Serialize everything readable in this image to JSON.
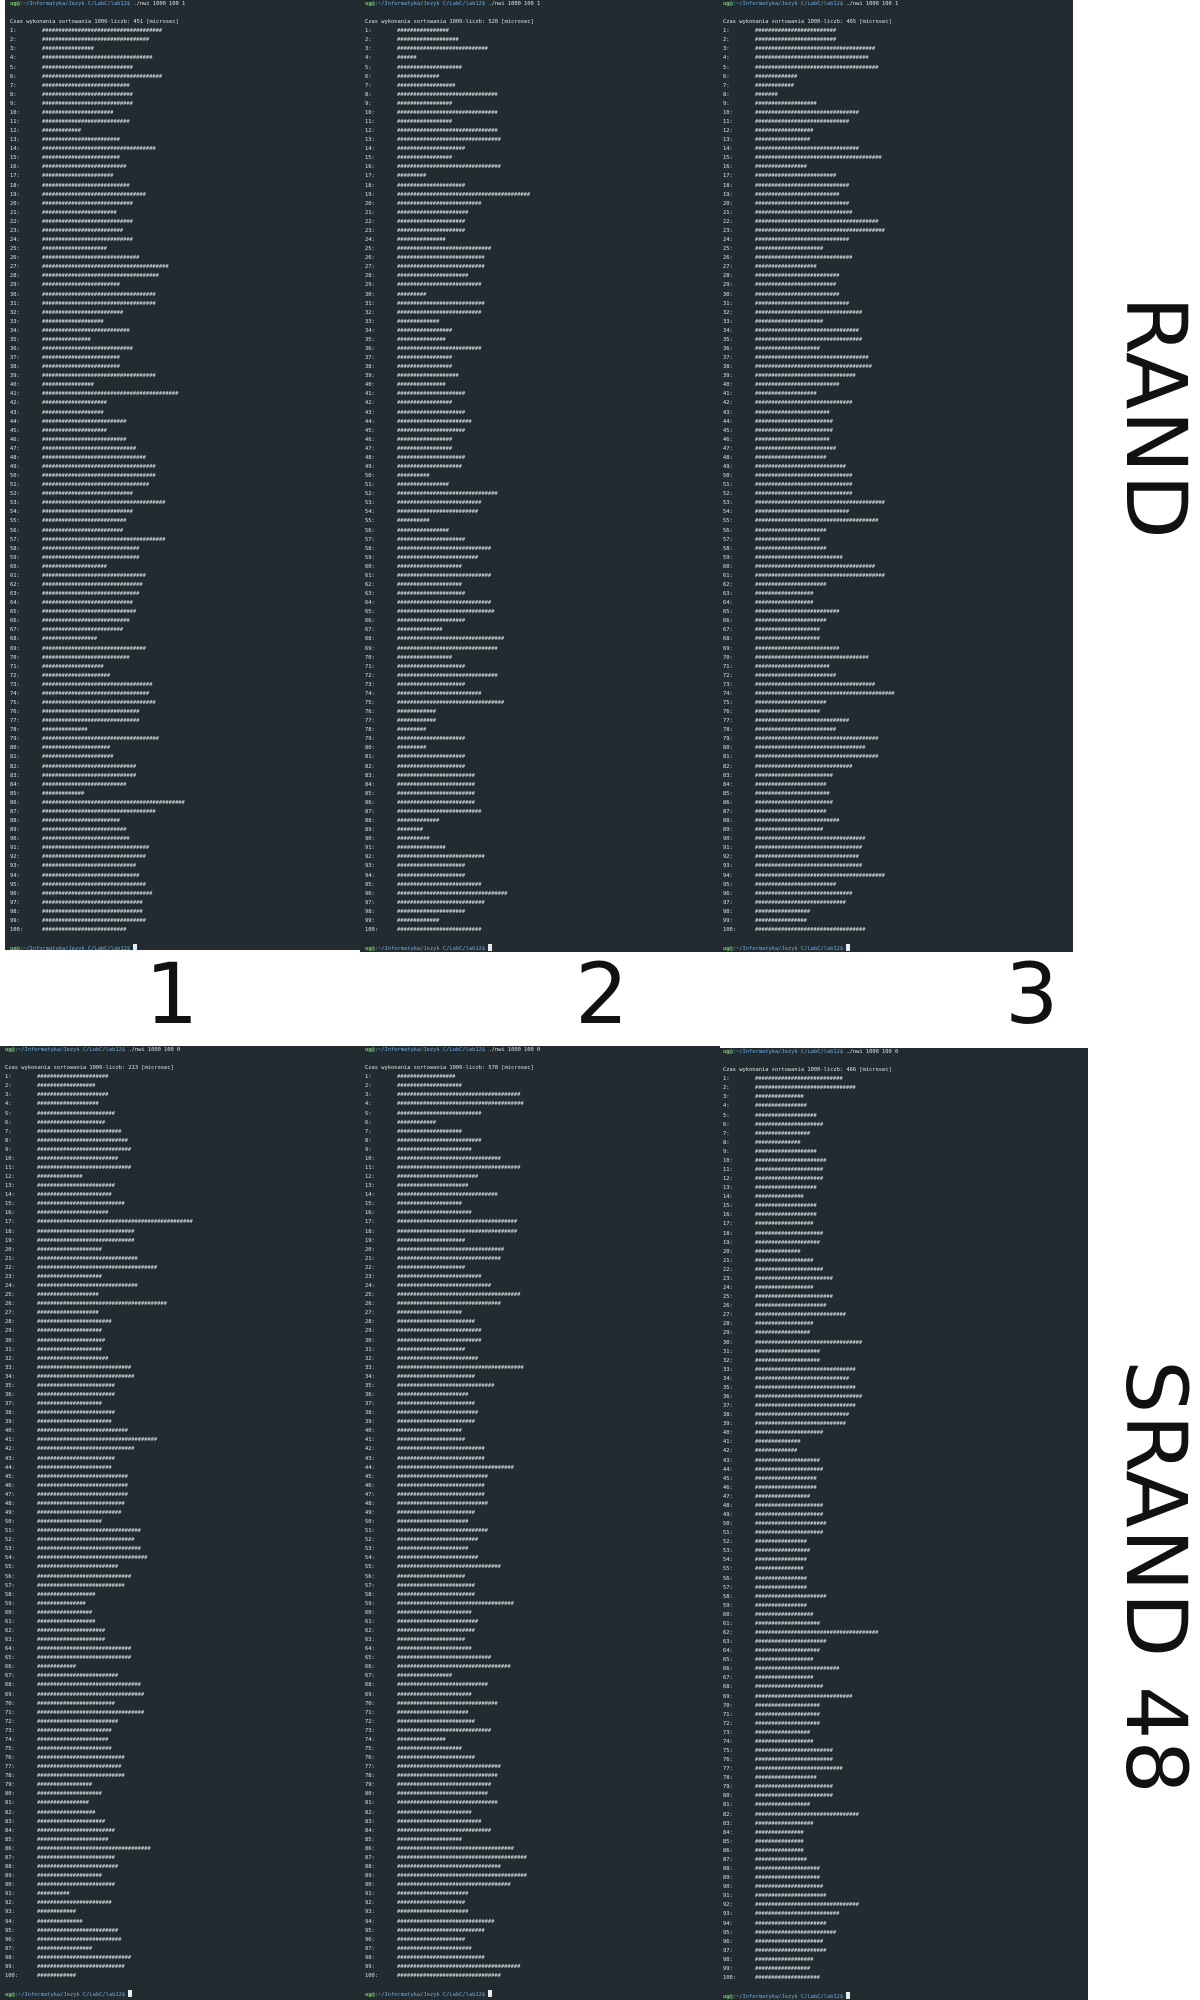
{
  "labels": {
    "row_rand": "RAND",
    "row_srand": "SRAND 48",
    "columns": [
      "1",
      "2",
      "3"
    ]
  },
  "colors": {
    "terminal_bg": "#222b30",
    "terminal_fg": "#dde3e6",
    "prompt_user": "#7cc36e",
    "prompt_path": "#6ea8e0"
  },
  "prompt": {
    "user": "ug@",
    "path": ":~/Informatyka/Jezyk C/LabC/lab12$"
  },
  "terminals": [
    {
      "id": "rand-1",
      "command": " ./nwi 1000 100 1",
      "time_line": "Czas wykonania sortowania 1000-liczb: 451 [microsec]",
      "bars": [
        37,
        33,
        16,
        34,
        28,
        37,
        27,
        28,
        28,
        22,
        27,
        12,
        24,
        35,
        24,
        26,
        22,
        27,
        32,
        28,
        23,
        28,
        25,
        28,
        20,
        30,
        39,
        36,
        24,
        35,
        35,
        25,
        19,
        27,
        15,
        28,
        24,
        24,
        35,
        16,
        42,
        20,
        19,
        26,
        20,
        26,
        29,
        32,
        35,
        35,
        33,
        28,
        38,
        28,
        26,
        25,
        38,
        30,
        30,
        20,
        32,
        31,
        30,
        28,
        29,
        27,
        25,
        17,
        32,
        27,
        19,
        21,
        34,
        33,
        35,
        30,
        30,
        14,
        36,
        21,
        22,
        29,
        29,
        26,
        13,
        44,
        35,
        24,
        26,
        27,
        33,
        32,
        29,
        30,
        32,
        34,
        31,
        31,
        32,
        26
      ]
    },
    {
      "id": "rand-2",
      "command": " ./nwi 1000 100 1",
      "time_line": "Czas wykonania sortowania 1000-liczb: 520 [microsec]",
      "bars": [
        16,
        19,
        28,
        6,
        20,
        13,
        18,
        31,
        17,
        31,
        17,
        31,
        32,
        21,
        17,
        32,
        9,
        21,
        41,
        26,
        22,
        21,
        21,
        15,
        29,
        27,
        27,
        22,
        26,
        9,
        27,
        26,
        13,
        17,
        15,
        26,
        17,
        17,
        19,
        15,
        21,
        17,
        21,
        23,
        21,
        17,
        17,
        21,
        20,
        10,
        16,
        31,
        26,
        25,
        10,
        16,
        21,
        29,
        25,
        20,
        29,
        20,
        21,
        29,
        30,
        21,
        14,
        33,
        31,
        17,
        21,
        31,
        21,
        26,
        33,
        12,
        12,
        9,
        21,
        9,
        21,
        21,
        24,
        24,
        24,
        24,
        26,
        13,
        8,
        10,
        15,
        27,
        21,
        21,
        26,
        34,
        27,
        21,
        13,
        26
      ]
    },
    {
      "id": "rand-3",
      "command": " ./nwi 1000 100 1",
      "time_line": "Czas wykonania sortowania 1000-liczb: 465 [microsec]",
      "bars": [
        25,
        25,
        37,
        35,
        38,
        13,
        12,
        7,
        19,
        32,
        29,
        18,
        17,
        32,
        39,
        16,
        25,
        29,
        26,
        29,
        30,
        38,
        40,
        29,
        21,
        30,
        19,
        26,
        25,
        26,
        29,
        33,
        21,
        32,
        33,
        20,
        35,
        36,
        31,
        26,
        19,
        30,
        23,
        24,
        24,
        23,
        25,
        22,
        28,
        30,
        30,
        30,
        40,
        29,
        38,
        22,
        20,
        22,
        27,
        37,
        40,
        22,
        18,
        18,
        26,
        22,
        20,
        20,
        26,
        35,
        23,
        25,
        37,
        43,
        22,
        20,
        29,
        25,
        38,
        34,
        38,
        30,
        24,
        22,
        23,
        24,
        22,
        26,
        21,
        34,
        33,
        32,
        33,
        40,
        25,
        30,
        28,
        17,
        16,
        34
      ]
    },
    {
      "id": "srand-1",
      "command": " ./nwi 1000 100 0",
      "time_line": "Czas wykonania sortowania 1000-liczb: 213 [microsec]",
      "bars": [
        22,
        18,
        22,
        19,
        24,
        21,
        26,
        28,
        29,
        25,
        29,
        14,
        24,
        23,
        27,
        22,
        48,
        30,
        30,
        20,
        31,
        37,
        20,
        31,
        19,
        40,
        19,
        23,
        20,
        21,
        20,
        22,
        29,
        30,
        24,
        24,
        20,
        24,
        23,
        28,
        37,
        30,
        24,
        23,
        28,
        28,
        28,
        27,
        26,
        20,
        32,
        30,
        32,
        34,
        25,
        29,
        27,
        18,
        15,
        17,
        18,
        21,
        21,
        29,
        29,
        12,
        25,
        32,
        33,
        24,
        33,
        25,
        23,
        22,
        23,
        27,
        26,
        27,
        17,
        20,
        16,
        18,
        21,
        24,
        22,
        35,
        24,
        25,
        20,
        24,
        10,
        23,
        12,
        14,
        25,
        26,
        17,
        29,
        27,
        12
      ]
    },
    {
      "id": "srand-2",
      "command": " ./nwi 1000 100 0",
      "time_line": "Czas wykonania sortowania 1000-liczb: 578 [microsec]",
      "bars": [
        18,
        20,
        38,
        39,
        26,
        12,
        20,
        26,
        23,
        32,
        38,
        25,
        22,
        31,
        20,
        23,
        37,
        37,
        21,
        33,
        32,
        21,
        26,
        29,
        38,
        32,
        20,
        24,
        26,
        26,
        21,
        25,
        39,
        24,
        30,
        22,
        24,
        25,
        24,
        20,
        21,
        27,
        27,
        36,
        28,
        27,
        27,
        28,
        24,
        22,
        28,
        25,
        22,
        25,
        32,
        21,
        24,
        24,
        36,
        23,
        25,
        24,
        21,
        23,
        29,
        35,
        17,
        28,
        23,
        31,
        22,
        24,
        29,
        15,
        20,
        24,
        32,
        31,
        29,
        28,
        31,
        23,
        26,
        29,
        20,
        36,
        40,
        32,
        40,
        35,
        22,
        21,
        22,
        30,
        27,
        21,
        23,
        27,
        38,
        32
      ]
    },
    {
      "id": "srand-3",
      "command": " ./nwi 1000 100 0",
      "time_line": "Czas wykonania sortowania 1000-liczb: 466 [microsec]",
      "bars": [
        27,
        31,
        15,
        16,
        19,
        21,
        17,
        14,
        19,
        22,
        21,
        21,
        19,
        15,
        19,
        19,
        18,
        21,
        20,
        14,
        18,
        21,
        24,
        18,
        24,
        22,
        28,
        18,
        17,
        33,
        20,
        20,
        31,
        29,
        31,
        33,
        31,
        29,
        28,
        21,
        14,
        13,
        20,
        21,
        19,
        19,
        17,
        21,
        21,
        22,
        21,
        16,
        17,
        16,
        15,
        16,
        16,
        22,
        16,
        18,
        20,
        38,
        22,
        20,
        18,
        26,
        18,
        21,
        30,
        20,
        20,
        20,
        17,
        18,
        24,
        24,
        27,
        19,
        24,
        24,
        17,
        32,
        18,
        15,
        15,
        15,
        16,
        20,
        20,
        21,
        22,
        32,
        26,
        22,
        25,
        21,
        22,
        18,
        17,
        20
      ]
    }
  ]
}
